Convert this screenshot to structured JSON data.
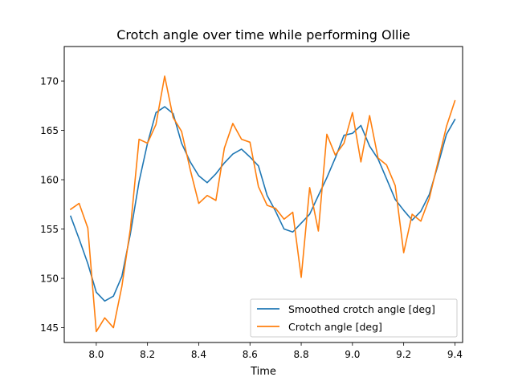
{
  "chart_data": {
    "type": "line",
    "title": "Crotch angle over time while performing Ollie",
    "xlabel": "Time",
    "ylabel": "",
    "xlim": [
      7.875,
      9.43
    ],
    "ylim": [
      143.5,
      173.5
    ],
    "xticks": [
      8.0,
      8.2,
      8.4,
      8.6,
      8.8,
      9.0,
      9.2,
      9.4
    ],
    "xtick_labels": [
      "8.0",
      "8.2",
      "8.4",
      "8.6",
      "8.8",
      "9.0",
      "9.2",
      "9.4"
    ],
    "yticks": [
      145,
      150,
      155,
      160,
      165,
      170
    ],
    "ytick_labels": [
      "145",
      "150",
      "155",
      "160",
      "165",
      "170"
    ],
    "grid": false,
    "legend_position": "lower-right",
    "x": [
      7.9,
      7.933,
      7.967,
      8.0,
      8.033,
      8.067,
      8.1,
      8.133,
      8.167,
      8.2,
      8.233,
      8.267,
      8.3,
      8.333,
      8.367,
      8.4,
      8.433,
      8.467,
      8.5,
      8.533,
      8.567,
      8.6,
      8.633,
      8.667,
      8.7,
      8.733,
      8.767,
      8.8,
      8.833,
      8.867,
      8.9,
      8.933,
      8.967,
      9.0,
      9.033,
      9.067,
      9.1,
      9.133,
      9.167,
      9.2,
      9.233,
      9.267,
      9.3,
      9.333,
      9.367,
      9.4
    ],
    "series": [
      {
        "name": "Smoothed crotch angle [deg]",
        "color": "#1f77b4",
        "values": [
          156.3,
          154.0,
          151.5,
          148.6,
          147.7,
          148.2,
          150.2,
          154.5,
          159.8,
          163.7,
          166.8,
          167.4,
          166.7,
          163.7,
          161.8,
          160.4,
          159.7,
          160.6,
          161.7,
          162.6,
          163.1,
          162.3,
          161.4,
          158.4,
          156.8,
          155.0,
          154.7,
          155.6,
          156.5,
          158.4,
          160.2,
          162.2,
          164.5,
          164.7,
          165.5,
          163.4,
          162.1,
          160.1,
          158.0,
          156.9,
          155.9,
          156.8,
          158.5,
          161.4,
          164.6,
          166.1
        ]
      },
      {
        "name": "Crotch angle [deg]",
        "color": "#ff7f0e",
        "values": [
          157.0,
          157.6,
          155.1,
          144.6,
          146.0,
          145.0,
          149.2,
          155.0,
          164.1,
          163.7,
          165.6,
          170.5,
          166.3,
          164.9,
          161.0,
          157.6,
          158.4,
          157.9,
          163.2,
          165.7,
          164.1,
          163.8,
          159.3,
          157.4,
          157.1,
          156.0,
          156.7,
          150.1,
          159.2,
          154.8,
          164.6,
          162.5,
          163.7,
          166.8,
          161.8,
          166.5,
          162.2,
          161.5,
          159.4,
          152.6,
          156.5,
          155.8,
          158.1,
          161.7,
          165.4,
          168.0
        ]
      }
    ]
  }
}
